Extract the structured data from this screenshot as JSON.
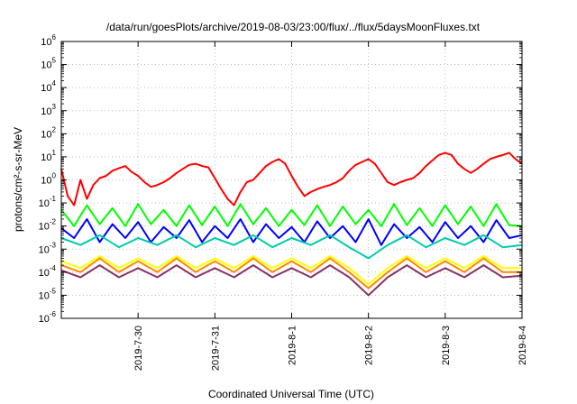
{
  "chart_data": {
    "type": "line",
    "title": "/data/run/goesPlots/archive/2019-08-03/23:00/flux/../flux/5daysMoonFluxes.txt",
    "xlabel": "Coordinated Universal Time (UTC)",
    "ylabel": "protons/cm²-s-sr-MeV",
    "y_scale": "log",
    "ylim": [
      1e-06,
      1000000.0
    ],
    "xlim": [
      "2019-07-29 00:00",
      "2019-08-04 00:00"
    ],
    "grid": true,
    "x_ticks": [
      "2019-7-30",
      "2019-7-31",
      "2019-8-1",
      "2019-8-2",
      "2019-8-3",
      "2019-8-4"
    ],
    "y_ticks": [
      {
        "value": 1e-06,
        "base": "10",
        "exp": "-6"
      },
      {
        "value": 1e-05,
        "base": "10",
        "exp": "-5"
      },
      {
        "value": 0.0001,
        "base": "10",
        "exp": "-4"
      },
      {
        "value": 0.001,
        "base": "10",
        "exp": "-3"
      },
      {
        "value": 0.01,
        "base": "10",
        "exp": "-2"
      },
      {
        "value": 0.1,
        "base": "10",
        "exp": "-1"
      },
      {
        "value": 1.0,
        "base": "10",
        "exp": "0"
      },
      {
        "value": 10.0,
        "base": "10",
        "exp": "1"
      },
      {
        "value": 100.0,
        "base": "10",
        "exp": "2"
      },
      {
        "value": 1000.0,
        "base": "10",
        "exp": "3"
      },
      {
        "value": 10000.0,
        "base": "10",
        "exp": "4"
      },
      {
        "value": 100000.0,
        "base": "10",
        "exp": "5"
      },
      {
        "value": 1000000.0,
        "base": "10",
        "exp": "6"
      }
    ],
    "series": [
      {
        "color": "#ff0000",
        "x": [
          "2019-07-29 00:00",
          "2019-07-29 02:00",
          "2019-07-29 04:00",
          "2019-07-29 06:00",
          "2019-07-29 08:00",
          "2019-07-29 10:00",
          "2019-07-29 12:00",
          "2019-07-29 14:00",
          "2019-07-29 16:00",
          "2019-07-29 18:00",
          "2019-07-29 20:00",
          "2019-07-29 22:00",
          "2019-07-30 00:00",
          "2019-07-30 02:00",
          "2019-07-30 04:00",
          "2019-07-30 06:00",
          "2019-07-30 08:00",
          "2019-07-30 10:00",
          "2019-07-30 12:00",
          "2019-07-30 14:00",
          "2019-07-30 16:00",
          "2019-07-30 18:00",
          "2019-07-30 20:00",
          "2019-07-30 22:00",
          "2019-07-31 00:00",
          "2019-07-31 02:00",
          "2019-07-31 04:00",
          "2019-07-31 06:00",
          "2019-07-31 08:00",
          "2019-07-31 10:00",
          "2019-07-31 12:00",
          "2019-07-31 14:00",
          "2019-07-31 16:00",
          "2019-07-31 18:00",
          "2019-07-31 20:00",
          "2019-07-31 22:00",
          "2019-08-01 00:00",
          "2019-08-01 02:00",
          "2019-08-01 04:00",
          "2019-08-01 06:00",
          "2019-08-01 08:00",
          "2019-08-01 10:00",
          "2019-08-01 12:00",
          "2019-08-01 14:00",
          "2019-08-01 16:00",
          "2019-08-01 18:00",
          "2019-08-01 20:00",
          "2019-08-01 22:00",
          "2019-08-02 00:00",
          "2019-08-02 02:00",
          "2019-08-02 04:00",
          "2019-08-02 06:00",
          "2019-08-02 08:00",
          "2019-08-02 10:00",
          "2019-08-02 12:00",
          "2019-08-02 14:00",
          "2019-08-02 16:00",
          "2019-08-02 18:00",
          "2019-08-02 20:00",
          "2019-08-02 22:00",
          "2019-08-03 00:00",
          "2019-08-03 02:00",
          "2019-08-03 04:00",
          "2019-08-03 06:00",
          "2019-08-03 08:00",
          "2019-08-03 10:00",
          "2019-08-03 12:00",
          "2019-08-03 14:00",
          "2019-08-03 16:00",
          "2019-08-03 18:00",
          "2019-08-03 20:00",
          "2019-08-03 22:00",
          "2019-08-04 00:00"
        ],
        "values": [
          3.0,
          0.2,
          0.08,
          1.0,
          0.15,
          0.6,
          1.2,
          1.5,
          2.5,
          3.2,
          4.0,
          2.2,
          1.5,
          0.8,
          0.5,
          0.6,
          0.8,
          1.2,
          2.0,
          3.0,
          4.5,
          5.0,
          4.0,
          3.5,
          1.2,
          0.4,
          0.15,
          0.08,
          0.3,
          0.8,
          1.0,
          2.0,
          4.0,
          6.0,
          8.0,
          5.0,
          1.5,
          0.5,
          0.2,
          0.3,
          0.4,
          0.5,
          0.6,
          0.8,
          1.2,
          2.5,
          4.5,
          6.0,
          8.0,
          5.0,
          2.0,
          0.8,
          0.6,
          0.8,
          1.0,
          1.2,
          2.0,
          4.0,
          7.0,
          12.0,
          15.0,
          12.0,
          5.0,
          3.0,
          2.0,
          3.0,
          5.0,
          8.0,
          10.0,
          12.0,
          15.0,
          8.0,
          5.0
        ]
      },
      {
        "color": "#00ff00",
        "x": [
          "2019-07-29 00:00",
          "2019-07-29 04:00",
          "2019-07-29 08:00",
          "2019-07-29 12:00",
          "2019-07-29 16:00",
          "2019-07-29 20:00",
          "2019-07-30 00:00",
          "2019-07-30 04:00",
          "2019-07-30 08:00",
          "2019-07-30 12:00",
          "2019-07-30 16:00",
          "2019-07-30 20:00",
          "2019-07-31 00:00",
          "2019-07-31 04:00",
          "2019-07-31 08:00",
          "2019-07-31 12:00",
          "2019-07-31 16:00",
          "2019-07-31 20:00",
          "2019-08-01 00:00",
          "2019-08-01 04:00",
          "2019-08-01 08:00",
          "2019-08-01 12:00",
          "2019-08-01 16:00",
          "2019-08-01 20:00",
          "2019-08-02 00:00",
          "2019-08-02 04:00",
          "2019-08-02 08:00",
          "2019-08-02 12:00",
          "2019-08-02 16:00",
          "2019-08-02 20:00",
          "2019-08-03 00:00",
          "2019-08-03 04:00",
          "2019-08-03 08:00",
          "2019-08-03 12:00",
          "2019-08-03 16:00",
          "2019-08-03 20:00",
          "2019-08-04 00:00"
        ],
        "values": [
          0.05,
          0.01,
          0.08,
          0.012,
          0.06,
          0.01,
          0.09,
          0.012,
          0.05,
          0.01,
          0.08,
          0.011,
          0.07,
          0.01,
          0.09,
          0.012,
          0.06,
          0.01,
          0.05,
          0.011,
          0.08,
          0.01,
          0.07,
          0.012,
          0.05,
          0.01,
          0.09,
          0.011,
          0.06,
          0.01,
          0.08,
          0.012,
          0.07,
          0.01,
          0.09,
          0.011,
          0.01
        ]
      },
      {
        "color": "#0000ff",
        "x": [
          "2019-07-29 00:00",
          "2019-07-29 04:00",
          "2019-07-29 08:00",
          "2019-07-29 12:00",
          "2019-07-29 16:00",
          "2019-07-29 20:00",
          "2019-07-30 00:00",
          "2019-07-30 04:00",
          "2019-07-30 08:00",
          "2019-07-30 12:00",
          "2019-07-30 16:00",
          "2019-07-30 20:00",
          "2019-07-31 00:00",
          "2019-07-31 04:00",
          "2019-07-31 08:00",
          "2019-07-31 12:00",
          "2019-07-31 16:00",
          "2019-07-31 20:00",
          "2019-08-01 00:00",
          "2019-08-01 04:00",
          "2019-08-01 08:00",
          "2019-08-01 12:00",
          "2019-08-01 16:00",
          "2019-08-01 20:00",
          "2019-08-02 00:00",
          "2019-08-02 04:00",
          "2019-08-02 08:00",
          "2019-08-02 12:00",
          "2019-08-02 16:00",
          "2019-08-02 20:00",
          "2019-08-03 00:00",
          "2019-08-03 04:00",
          "2019-08-03 08:00",
          "2019-08-03 12:00",
          "2019-08-03 16:00",
          "2019-08-03 20:00",
          "2019-08-04 00:00"
        ],
        "values": [
          0.008,
          0.003,
          0.02,
          0.002,
          0.012,
          0.003,
          0.015,
          0.002,
          0.009,
          0.003,
          0.018,
          0.002,
          0.01,
          0.003,
          0.02,
          0.002,
          0.012,
          0.003,
          0.009,
          0.002,
          0.016,
          0.003,
          0.01,
          0.002,
          0.02,
          0.0015,
          0.012,
          0.003,
          0.009,
          0.002,
          0.015,
          0.003,
          0.01,
          0.002,
          0.018,
          0.003,
          0.004
        ]
      },
      {
        "color": "#00ccaa",
        "x": [
          "2019-07-29 00:00",
          "2019-07-29 06:00",
          "2019-07-29 12:00",
          "2019-07-29 18:00",
          "2019-07-30 00:00",
          "2019-07-30 06:00",
          "2019-07-30 12:00",
          "2019-07-30 18:00",
          "2019-07-31 00:00",
          "2019-07-31 06:00",
          "2019-07-31 12:00",
          "2019-07-31 18:00",
          "2019-08-01 00:00",
          "2019-08-01 06:00",
          "2019-08-01 12:00",
          "2019-08-01 18:00",
          "2019-08-02 00:00",
          "2019-08-02 06:00",
          "2019-08-02 12:00",
          "2019-08-02 18:00",
          "2019-08-03 00:00",
          "2019-08-03 06:00",
          "2019-08-03 12:00",
          "2019-08-03 18:00",
          "2019-08-04 00:00"
        ],
        "values": [
          0.003,
          0.0015,
          0.004,
          0.0012,
          0.003,
          0.0015,
          0.004,
          0.0012,
          0.003,
          0.0015,
          0.004,
          0.0012,
          0.003,
          0.0015,
          0.004,
          0.0012,
          0.0004,
          0.0015,
          0.004,
          0.0012,
          0.003,
          0.0015,
          0.004,
          0.0012,
          0.0015
        ]
      },
      {
        "color": "#ffff00",
        "x": [
          "2019-07-29 00:00",
          "2019-07-29 06:00",
          "2019-07-29 12:00",
          "2019-07-29 18:00",
          "2019-07-30 00:00",
          "2019-07-30 06:00",
          "2019-07-30 12:00",
          "2019-07-30 18:00",
          "2019-07-31 00:00",
          "2019-07-31 06:00",
          "2019-07-31 12:00",
          "2019-07-31 18:00",
          "2019-08-01 00:00",
          "2019-08-01 06:00",
          "2019-08-01 12:00",
          "2019-08-01 18:00",
          "2019-08-02 00:00",
          "2019-08-02 06:00",
          "2019-08-02 12:00",
          "2019-08-02 18:00",
          "2019-08-03 00:00",
          "2019-08-03 06:00",
          "2019-08-03 12:00",
          "2019-08-03 18:00",
          "2019-08-04 00:00"
        ],
        "values": [
          0.0003,
          0.00015,
          0.0005,
          0.00015,
          0.0004,
          0.00015,
          0.0005,
          0.00015,
          0.0004,
          0.00015,
          0.0005,
          0.00015,
          0.0004,
          0.00015,
          0.0005,
          0.00015,
          3e-05,
          0.00015,
          0.0005,
          0.00015,
          0.0004,
          0.00015,
          0.0005,
          0.00015,
          0.00015
        ]
      },
      {
        "color": "#ff8800",
        "x": [
          "2019-07-29 00:00",
          "2019-07-29 06:00",
          "2019-07-29 12:00",
          "2019-07-29 18:00",
          "2019-07-30 00:00",
          "2019-07-30 06:00",
          "2019-07-30 12:00",
          "2019-07-30 18:00",
          "2019-07-31 00:00",
          "2019-07-31 06:00",
          "2019-07-31 12:00",
          "2019-07-31 18:00",
          "2019-08-01 00:00",
          "2019-08-01 06:00",
          "2019-08-01 12:00",
          "2019-08-01 18:00",
          "2019-08-02 00:00",
          "2019-08-02 06:00",
          "2019-08-02 12:00",
          "2019-08-02 18:00",
          "2019-08-03 00:00",
          "2019-08-03 06:00",
          "2019-08-03 12:00",
          "2019-08-03 18:00",
          "2019-08-04 00:00"
        ],
        "values": [
          0.0002,
          0.0001,
          0.0004,
          0.0001,
          0.0003,
          0.0001,
          0.0004,
          0.0001,
          0.0003,
          0.0001,
          0.0004,
          0.0001,
          0.0003,
          0.0001,
          0.0004,
          0.0001,
          2e-05,
          0.0001,
          0.0004,
          0.0001,
          0.0003,
          0.0001,
          0.0004,
          0.0001,
          0.0001
        ]
      },
      {
        "color": "#883366",
        "x": [
          "2019-07-29 00:00",
          "2019-07-29 06:00",
          "2019-07-29 12:00",
          "2019-07-29 18:00",
          "2019-07-30 00:00",
          "2019-07-30 06:00",
          "2019-07-30 12:00",
          "2019-07-30 18:00",
          "2019-07-31 00:00",
          "2019-07-31 06:00",
          "2019-07-31 12:00",
          "2019-07-31 18:00",
          "2019-08-01 00:00",
          "2019-08-01 06:00",
          "2019-08-01 12:00",
          "2019-08-01 18:00",
          "2019-08-02 00:00",
          "2019-08-02 06:00",
          "2019-08-02 12:00",
          "2019-08-02 18:00",
          "2019-08-03 00:00",
          "2019-08-03 06:00",
          "2019-08-03 12:00",
          "2019-08-03 18:00",
          "2019-08-04 00:00"
        ],
        "values": [
          0.00012,
          6e-05,
          0.0002,
          6e-05,
          0.00015,
          6e-05,
          0.0002,
          6e-05,
          0.00015,
          6e-05,
          0.0002,
          6e-05,
          0.00015,
          6e-05,
          0.0002,
          6e-05,
          1e-05,
          6e-05,
          0.0002,
          6e-05,
          0.00015,
          6e-05,
          0.0002,
          6e-05,
          7e-05
        ]
      }
    ]
  }
}
